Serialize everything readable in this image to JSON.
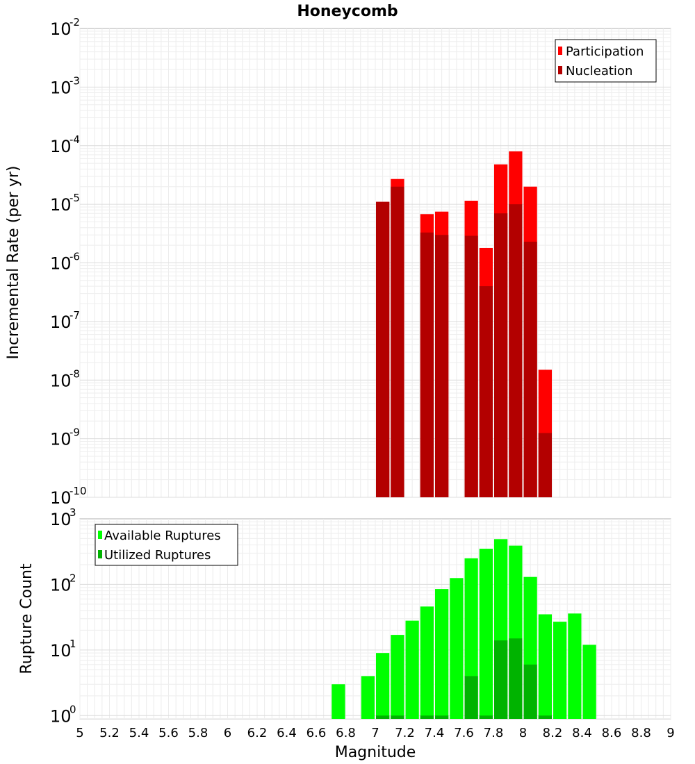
{
  "chart_data": {
    "type": "bar",
    "title": "Honeycomb",
    "xlabel": "Magnitude",
    "xlim": [
      5,
      9
    ],
    "xticks": [
      "5",
      "5.2",
      "5.4",
      "5.6",
      "5.8",
      "6",
      "6.2",
      "6.4",
      "6.6",
      "6.8",
      "7",
      "7.2",
      "7.4",
      "7.6",
      "7.8",
      "8",
      "8.2",
      "8.4",
      "8.6",
      "8.8",
      "9"
    ],
    "bin_width": 0.1,
    "panels": [
      {
        "name": "rate",
        "ylabel": "Incremental Rate (per yr)",
        "yscale": "log",
        "ylim_exp": [
          -10,
          -2
        ],
        "ytick_exps": [
          "-10",
          "-9",
          "-8",
          "-7",
          "-6",
          "-5",
          "-4",
          "-3",
          "-2"
        ],
        "legend_position": "top-right",
        "grid": true,
        "series": [
          {
            "name": "Participation",
            "color": "#ff0000",
            "x": [
              7.05,
              7.15,
              7.35,
              7.45,
              7.65,
              7.75,
              7.85,
              7.95,
              8.05,
              8.15
            ],
            "values": [
              1.1e-05,
              2.7e-05,
              6.8e-06,
              7.5e-06,
              1.15e-05,
              1.8e-06,
              4.8e-05,
              8e-05,
              2e-05,
              1.5e-08
            ]
          },
          {
            "name": "Nucleation",
            "color": "#b30000",
            "x": [
              7.05,
              7.15,
              7.35,
              7.45,
              7.65,
              7.75,
              7.85,
              7.95,
              8.05,
              8.15
            ],
            "values": [
              1.1e-05,
              2e-05,
              3.3e-06,
              3e-06,
              2.9e-06,
              4e-07,
              7e-06,
              1e-05,
              2.3e-06,
              1.25e-09
            ]
          }
        ]
      },
      {
        "name": "count",
        "ylabel": "Rupture Count",
        "yscale": "log",
        "ylim_exp": [
          -0.05,
          3
        ],
        "ytick_exps": [
          "0",
          "1",
          "2",
          "3"
        ],
        "legend_position": "top-left",
        "grid": true,
        "series": [
          {
            "name": "Available Ruptures",
            "color": "#00ff00",
            "x": [
              6.75,
              6.95,
              7.05,
              7.15,
              7.25,
              7.35,
              7.45,
              7.55,
              7.65,
              7.75,
              7.85,
              7.95,
              8.05,
              8.15,
              8.25,
              8.35,
              8.45
            ],
            "values": [
              3,
              4,
              9,
              17,
              28,
              46,
              85,
              125,
              250,
              350,
              490,
              390,
              130,
              35,
              27,
              36,
              12
            ]
          },
          {
            "name": "Utilized Ruptures",
            "color": "#00b300",
            "x": [
              7.05,
              7.15,
              7.35,
              7.45,
              7.65,
              7.75,
              7.85,
              7.95,
              8.05,
              8.15
            ],
            "values": [
              1,
              1,
              1,
              1,
              4,
              1,
              14,
              15,
              6,
              1
            ]
          }
        ]
      }
    ]
  }
}
